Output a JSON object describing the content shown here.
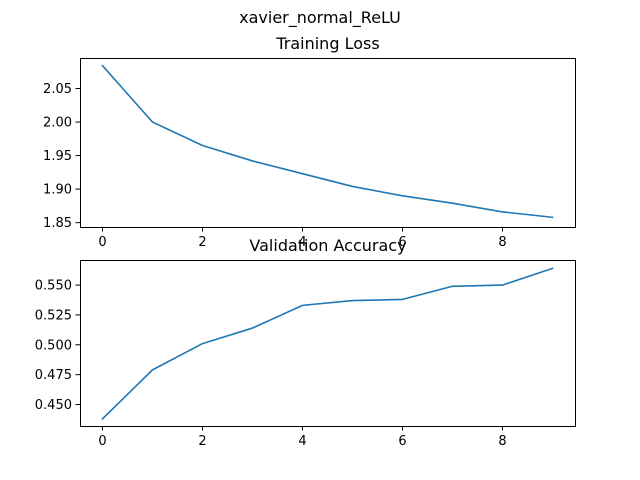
{
  "figure": {
    "suptitle": "xavier_normal_ReLU"
  },
  "colors": {
    "series": "#1f77b4"
  },
  "chart_data": [
    {
      "type": "line",
      "title": "Training Loss",
      "xlabel": "",
      "ylabel": "",
      "xlim": [
        -0.45,
        9.45
      ],
      "ylim": [
        1.8435,
        2.0955
      ],
      "xticks": [
        0,
        2,
        4,
        6,
        8
      ],
      "yticks": [
        1.85,
        1.9,
        1.95,
        2.0,
        2.05
      ],
      "ytick_labels": [
        "1.85",
        "1.90",
        "1.95",
        "2.00",
        "2.05"
      ],
      "grid": false,
      "x": [
        0,
        1,
        2,
        3,
        4,
        5,
        6,
        7,
        8,
        9
      ],
      "series": [
        {
          "values": [
            2.084,
            2.0,
            1.965,
            1.942,
            1.923,
            1.904,
            1.89,
            1.879,
            1.866,
            1.858
          ]
        }
      ]
    },
    {
      "type": "line",
      "title": "Validation Accuracy",
      "xlabel": "",
      "ylabel": "",
      "xlim": [
        -0.45,
        9.45
      ],
      "ylim": [
        0.432,
        0.571
      ],
      "xticks": [
        0,
        2,
        4,
        6,
        8
      ],
      "yticks": [
        0.45,
        0.475,
        0.5,
        0.525,
        0.55
      ],
      "ytick_labels": [
        "0.450",
        "0.475",
        "0.500",
        "0.525",
        "0.550"
      ],
      "grid": false,
      "x": [
        0,
        1,
        2,
        3,
        4,
        5,
        6,
        7,
        8,
        9
      ],
      "series": [
        {
          "values": [
            0.438,
            0.479,
            0.501,
            0.514,
            0.533,
            0.537,
            0.538,
            0.549,
            0.55,
            0.564
          ]
        }
      ]
    }
  ]
}
